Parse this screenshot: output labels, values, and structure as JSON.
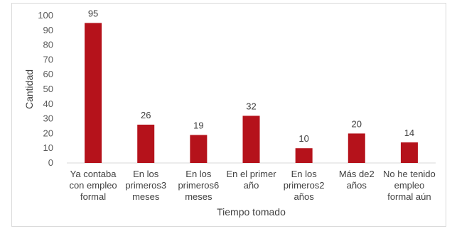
{
  "chart_data": {
    "type": "bar",
    "title": "",
    "xlabel": "Tiempo tomado",
    "ylabel": "Cantidad",
    "ylim": [
      0,
      100
    ],
    "yticks": [
      0,
      10,
      20,
      30,
      40,
      50,
      60,
      70,
      80,
      90,
      100
    ],
    "categories": [
      [
        "Ya contaba",
        "con empleo",
        "formal"
      ],
      [
        "En los",
        "primeros3",
        "meses"
      ],
      [
        "En los",
        "primeros6",
        "meses"
      ],
      [
        "En el primer",
        "año"
      ],
      [
        "En los",
        "primeros2",
        "años"
      ],
      [
        "Más de2",
        "años"
      ],
      [
        "No he tenido",
        "empleo",
        "formal aún"
      ]
    ],
    "values": [
      95,
      26,
      19,
      32,
      10,
      20,
      14
    ],
    "grid": false,
    "legend": "none",
    "bar_color": "#b5121b",
    "axis_color": "#d9d9d9"
  }
}
